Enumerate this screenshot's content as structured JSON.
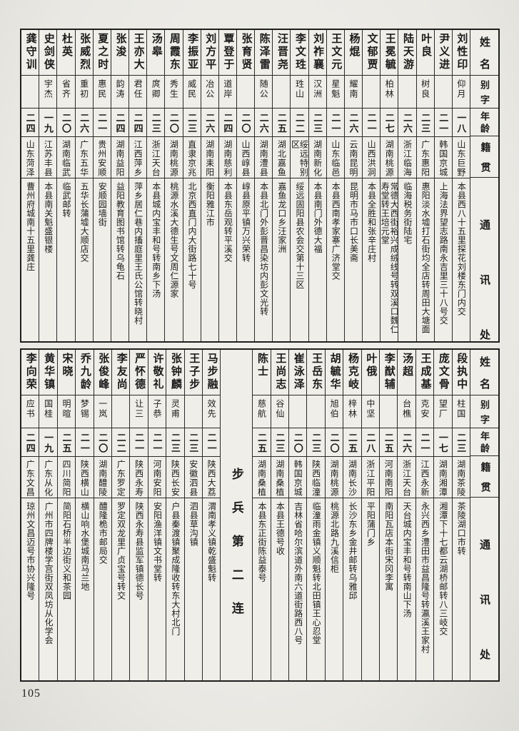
{
  "page": {
    "number": "105"
  },
  "company_label": "步兵第二连",
  "headers": {
    "name": "姓名",
    "courtesy": "别字",
    "age": "年龄",
    "origin": "籍贯",
    "address": "通讯处"
  },
  "top_table": {
    "people": [
      {
        "name": "刘性印",
        "courtesy": "仰月",
        "age": "一八",
        "origin": "山东巨野",
        "address": "本县西八十五里探花刘楼东门内交"
      },
      {
        "name": "尹义进",
        "courtesy": "",
        "age": "二一",
        "origin": "韩国京城",
        "address": "上海法界望志路南永吉里三十八号交"
      },
      {
        "name": "叶良",
        "courtesy": "树良",
        "age": "二三",
        "origin": "广东惠阳",
        "address": "惠阳淡水墟打石街均全店转周田大塘面"
      },
      {
        "name": "陆天游",
        "courtesy": "",
        "age": "二六",
        "origin": "浙江临海",
        "address": "临海税务街陆宅"
      },
      {
        "name": "王冕毓",
        "courtesy": "柏林",
        "age": "二七",
        "origin": "湖南桃源",
        "address": "常德大西街裕兴成绒线号转双溪口魏仁寿堂转王培元堂"
      },
      {
        "name": "文郁贾",
        "courtesy": "",
        "age": "二一",
        "origin": "山西洪洞",
        "address": "本县全胜和张辛庄村"
      },
      {
        "name": "杨焜",
        "courtesy": "耀南",
        "age": "二六",
        "origin": "云南昆明",
        "address": "昆明市马市口长美斋"
      },
      {
        "name": "王文元",
        "courtesy": "星魁",
        "age": "二一",
        "origin": "山东临邑",
        "address": "本县西南孝家寨广济堂交"
      },
      {
        "name": "刘祚襄",
        "courtesy": "汉洲",
        "age": "二三",
        "origin": "湖南新化",
        "address": "本县南门外德大福"
      },
      {
        "name": "李文珄",
        "courtesy": "珄山",
        "age": "二二",
        "origin": "绥远特别区",
        "address": "绥远固阳县农会交第十三区"
      },
      {
        "name": "汪晋尧",
        "courtesy": "",
        "age": "二五",
        "origin": "湖北嘉鱼",
        "address": "嘉鱼龙口乡汪家洲"
      },
      {
        "name": "陈泽雷",
        "courtesy": "随公",
        "age": "二六",
        "origin": "湖南澧县",
        "address": "本县北门外彭晋昌染坊内彭文光转"
      },
      {
        "name": "张育贤",
        "courtesy": "",
        "age": "二〇",
        "origin": "山西崞县",
        "address": "崞县原平镇万兴荣转"
      },
      {
        "name": "覃登于",
        "courtesy": "道岸",
        "age": "二四",
        "origin": "湖南慈利",
        "address": "本县东岳观转平溪交"
      },
      {
        "name": "刘方平",
        "courtesy": "冶公",
        "age": "二六",
        "origin": "湖南耒阳",
        "address": "衡阳雅江市"
      },
      {
        "name": "李振亚",
        "courtesy": "威民",
        "age": "二三",
        "origin": "直隶京兆",
        "address": "北京西直门内大街路七十号"
      },
      {
        "name": "周霞东",
        "courtesy": "秀生",
        "age": "二〇",
        "origin": "湖南桃源",
        "address": "桃源水溪大德生号文周仁源家"
      },
      {
        "name": "汤皋",
        "courtesy": "庹卿",
        "age": "二三",
        "origin": "浙江天台",
        "address": "本县城内宝丰和号转南乡下汤"
      },
      {
        "name": "王亦大",
        "courtesy": "君任",
        "age": "二四",
        "origin": "江西萍乡",
        "address": "萍乡居仁巷内搐庭里王氏公馆转晓村"
      },
      {
        "name": "张浚",
        "courtesy": "韵涛",
        "age": "二四",
        "origin": "湖南益阳",
        "address": "益阳教育图书馆转乌龟石"
      },
      {
        "name": "夏之时",
        "courtesy": "惠民",
        "age": "二一",
        "origin": "贵州安顺",
        "address": "安顺园墙街"
      },
      {
        "name": "张威烈",
        "courtesy": "重初",
        "age": "二六",
        "origin": "广东五华",
        "address": "五华长蒲墟大顺店交"
      },
      {
        "name": "杜英",
        "courtesy": "省齐",
        "age": "二〇",
        "origin": "湖南临武",
        "address": "临武邮转"
      },
      {
        "name": "史剑侠",
        "courtesy": "宇杰",
        "age": "一九",
        "origin": "江苏丰县",
        "address": "本县南关魁盛银楼"
      },
      {
        "name": "龚守训",
        "courtesy": "",
        "age": "二四",
        "origin": "山东菏泽",
        "address": "曹州府城南十五里龚庄"
      }
    ]
  },
  "bottom_table": {
    "people_right": [
      {
        "name": "段执中",
        "courtesy": "柱国",
        "age": "二三",
        "origin": "湖南茶陵",
        "address": "茶陵湖口市转"
      },
      {
        "name": "庞文骨",
        "courtesy": "望厂",
        "age": "一七",
        "origin": "湖南湘潭",
        "address": "湘潭下十七都云湖桥邮转八三岐交"
      },
      {
        "name": "王成基",
        "courtesy": "克安",
        "age": "二一",
        "origin": "江西永新",
        "address": "永兴西乡澧田市益昌隆号转瀛溪王家村"
      },
      {
        "name": "汤超",
        "courtesy": "台樵",
        "age": "二六",
        "origin": "浙江天台",
        "address": "天台城内宝丰和号转南山下汤"
      },
      {
        "name": "李猷辅",
        "courtesy": "",
        "age": "二五",
        "origin": "河南南阳",
        "address": "南阳瓦店本街宋冈李寓"
      },
      {
        "name": "叶俄",
        "courtesy": "中坚",
        "age": "二八",
        "origin": "浙江平阳",
        "address": "平阳蒲门乡"
      },
      {
        "name": "杨克岐",
        "courtesy": "梓林",
        "age": "二五",
        "origin": "湖南长沙",
        "address": "长沙东乡金井邮转乌雅邱"
      },
      {
        "name": "胡毓华",
        "courtesy": "旭伯",
        "age": "二〇",
        "origin": "湖南桃源",
        "address": "桃源北路九溪信柜"
      },
      {
        "name": "王岳东",
        "courtesy": "",
        "age": "二三",
        "origin": "陕西临潼",
        "address": "临潼雨金镇义顺魁转北田镇王心忍堂"
      },
      {
        "name": "崔泳泽",
        "courtesy": "",
        "age": "二〇",
        "origin": "韩国京城",
        "address": "吉林省哈尔滨道外南六道街路西八号"
      },
      {
        "name": "王尚志",
        "courtesy": "谷仙",
        "age": "二三",
        "origin": "湖南桑植",
        "address": "本县王德号收"
      },
      {
        "name": "陈士",
        "courtesy": "慈航",
        "age": "二五",
        "origin": "湖南桑植",
        "address": "本县东正街陈益泰号"
      }
    ],
    "people_left": [
      {
        "name": "马步融",
        "courtesy": "效先",
        "age": "二一",
        "origin": "陕西大荔",
        "address": "渭南孝义镇乾盛魁转"
      },
      {
        "name": "王子步",
        "courtesy": "",
        "age": "二三",
        "origin": "安徽泗县",
        "address": "泗县草沟镇"
      },
      {
        "name": "张钟麟",
        "courtesy": "灵甫",
        "age": "二三",
        "origin": "陕西长安",
        "address": "户县秦渡镇聚成隆收转东大村北门"
      },
      {
        "name": "许敬礼",
        "courtesy": "子恭",
        "age": "二一",
        "origin": "河南安阳",
        "address": "安阳渔洋镇文书堂转"
      },
      {
        "name": "严怀德",
        "courtesy": "让三",
        "age": "二一",
        "origin": "陕西永寿",
        "address": "陕西永寿县监军镇德长号"
      },
      {
        "name": "李友尚",
        "courtesy": "",
        "age": "二二",
        "origin": "广东罗定",
        "address": "罗定双龙里广贞宝号转交"
      },
      {
        "name": "张俊峰",
        "courtesy": "一岚",
        "age": "二〇",
        "origin": "湖南醴陵",
        "address": "醴隆桅市邮局交"
      },
      {
        "name": "乔九龄",
        "courtesy": "梦锡",
        "age": "二一",
        "origin": "陕西横山",
        "address": "横山响水堡城南马兰地"
      },
      {
        "name": "宋晓",
        "courtesy": "明暄",
        "age": "二五",
        "origin": "四川简阳",
        "address": "简阳石桥半边街义和茶园"
      },
      {
        "name": "黄华镇",
        "courtesy": "国桂",
        "age": "一九",
        "origin": "广东从化",
        "address": "广州市四牌楼学宫街双凤坊从化学会"
      },
      {
        "name": "李向荣",
        "courtesy": "应书",
        "age": "二四",
        "origin": "广东文昌",
        "address": "琼州文昌迈号市协兴隆号"
      }
    ]
  }
}
